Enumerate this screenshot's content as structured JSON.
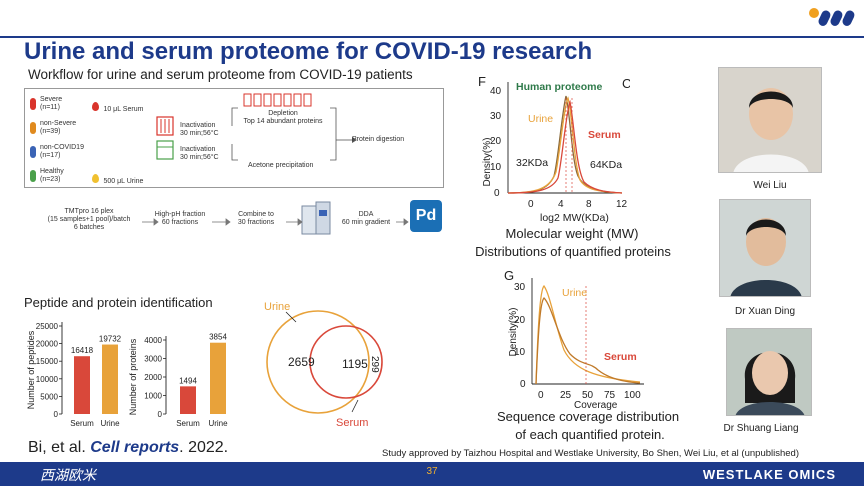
{
  "header": {
    "title": "Urine and serum proteome for COVID-19 research",
    "subtitle": "Workflow for urine and serum proteome from COVID-19 patients"
  },
  "workflow": {
    "groups": [
      {
        "label": "Severe",
        "n": "(n=11)",
        "color": "#d9342b"
      },
      {
        "label": "non-Severe",
        "n": "(n=39)",
        "color": "#e08a1e"
      },
      {
        "label": "non-COVID19",
        "n": "(n=17)",
        "color": "#3a63b5"
      },
      {
        "label": "Healthy",
        "n": "(n=23)",
        "color": "#4aa04a"
      }
    ],
    "serum_volume": "10 μL Serum",
    "urine_volume": "500 μL Urine",
    "inactivation_label": "Inactivation",
    "inactivation_cond": "30 min;56°C",
    "depletion": "Depletion",
    "depletion_detail": "Top 14 abundant proteins",
    "acetone": "Acetone precipitation",
    "digestion": "Protein digestion",
    "tmt": "TMTpro 16 plex",
    "tmt_detail": "(15 samples+1 pool)/batch",
    "batches": "6 batches",
    "hph": "High-pH fraction",
    "hph_detail": "60 fractions",
    "combine": "Combine to",
    "combine_detail": "30 fractions",
    "dda": "DDA",
    "dda_detail": "60 min gradient",
    "pd_label": "Pd"
  },
  "identification": {
    "section_title": "Peptide and protein identification",
    "chart_data": [
      {
        "type": "bar",
        "ylabel": "Number of peptides",
        "categories": [
          "Serum",
          "Urine"
        ],
        "values": [
          16418,
          19732
        ],
        "ylim": [
          0,
          25000
        ],
        "ticks": [
          "0",
          "5000",
          "10000",
          "15000",
          "20000",
          "25000"
        ],
        "colors": [
          "#d9483a",
          "#e8a23a"
        ]
      },
      {
        "type": "bar",
        "ylabel": "Number of proteins",
        "categories": [
          "Serum",
          "Urine"
        ],
        "values": [
          1494,
          3854
        ],
        "ylim": [
          0,
          4000
        ],
        "ticks": [
          "0",
          "1000",
          "2000",
          "3000",
          "4000"
        ],
        "colors": [
          "#d9483a",
          "#e8a23a"
        ]
      }
    ]
  },
  "venn": {
    "urine_label": "Urine",
    "serum_label": "Serum",
    "urine_only": "2659",
    "overlap": "1195",
    "serum_only": "299"
  },
  "mw_chart": {
    "panel_letter": "F",
    "panel_letter2": "C",
    "human_label": "Human proteome",
    "urine_label": "Urine",
    "serum_label": "Serum",
    "ann_low": "32KDa",
    "ann_high": "64KDa",
    "ylabel": "Density(%)",
    "xlabel": "log2 MW(KDa)",
    "yticks": [
      "0",
      "10",
      "20",
      "30",
      "40"
    ],
    "xticks": [
      "0",
      "4",
      "8",
      "12"
    ],
    "caption1": "Molecular weight (MW)",
    "caption2": "Distributions of quantified proteins"
  },
  "cov_chart": {
    "panel_letter": "G",
    "urine_label": "Urine",
    "serum_label": "Serum",
    "ylabel": "Density(%)",
    "xlabel": "Coverage",
    "yticks": [
      "0",
      "10",
      "20",
      "30"
    ],
    "xticks": [
      "0",
      "25",
      "50",
      "75",
      "100"
    ],
    "caption1": "Sequence coverage distribution",
    "caption2": "of each quantified protein."
  },
  "people": [
    {
      "name": "Wei Liu"
    },
    {
      "name": "Dr Xuan Ding"
    },
    {
      "name": "Dr Shuang Liang"
    }
  ],
  "citation": {
    "prefix": "Bi, et al. ",
    "journal": "Cell reports",
    "suffix": ". 2022."
  },
  "study_note": "Study approved by Taizhou Hospital and Westlake University, Bo Shen, Wei Liu, et al (unpublished)",
  "footer": {
    "page": "37",
    "left_logo": "西湖欧米",
    "right_logo": "WESTLAKE OMICS"
  },
  "colors": {
    "brand": "#1d3a8a",
    "serum": "#d9483a",
    "urine": "#e8a23a"
  }
}
